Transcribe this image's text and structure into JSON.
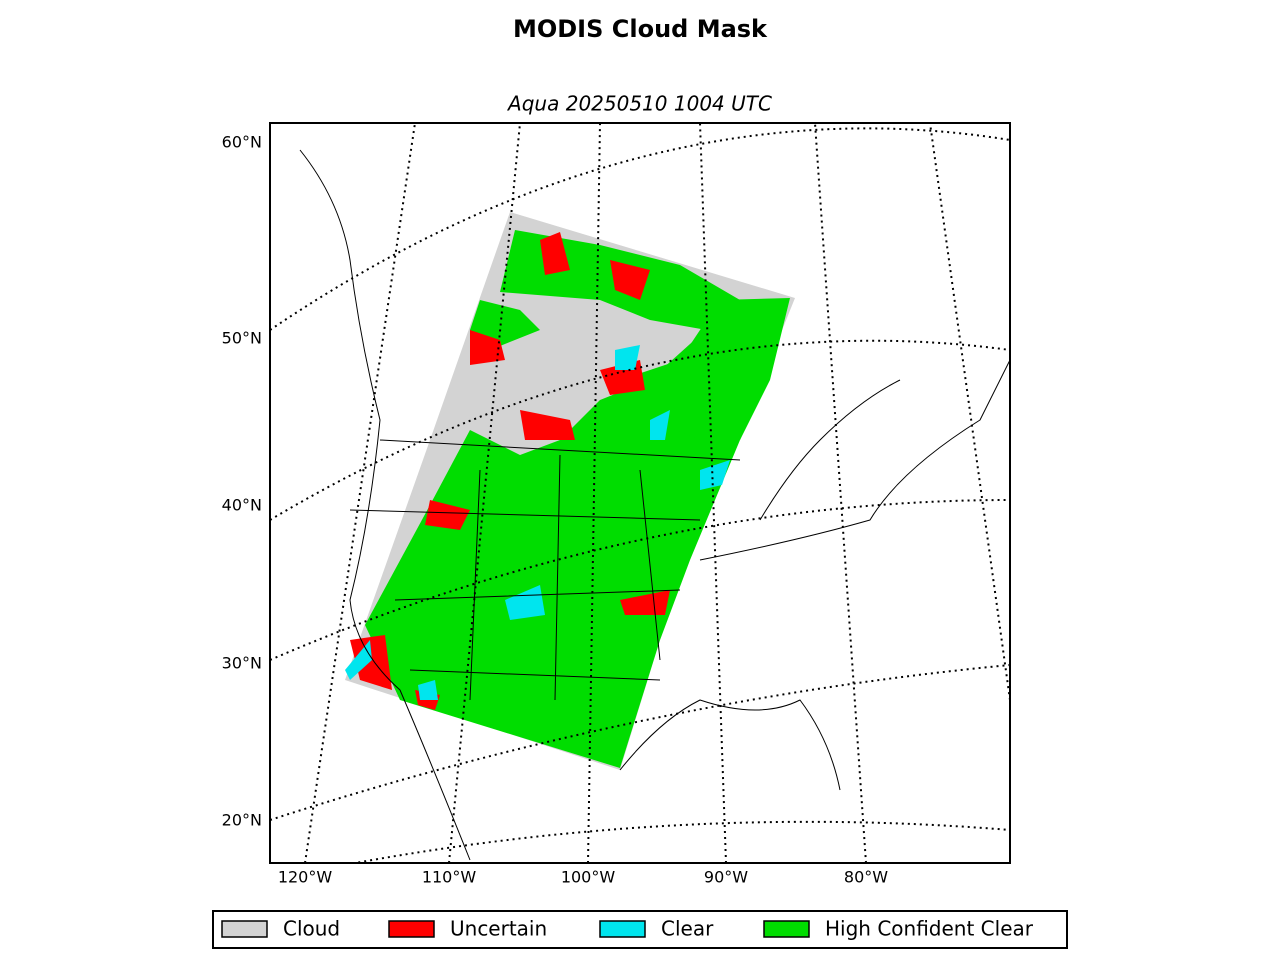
{
  "title": "MODIS Cloud Mask",
  "subtitle": "Aqua 20250510 1004 UTC",
  "lat_labels": [
    "60°N",
    "50°N",
    "40°N",
    "30°N",
    "20°N"
  ],
  "lon_labels": [
    "120°W",
    "110°W",
    "100°W",
    "90°W",
    "80°W"
  ],
  "legend": [
    {
      "name": "Cloud",
      "color": "#d3d3d3"
    },
    {
      "name": "Uncertain",
      "color": "#ff0000"
    },
    {
      "name": "Clear",
      "color": "#00e5ee"
    },
    {
      "name": "High Confident Clear",
      "color": "#00dd00"
    }
  ]
}
